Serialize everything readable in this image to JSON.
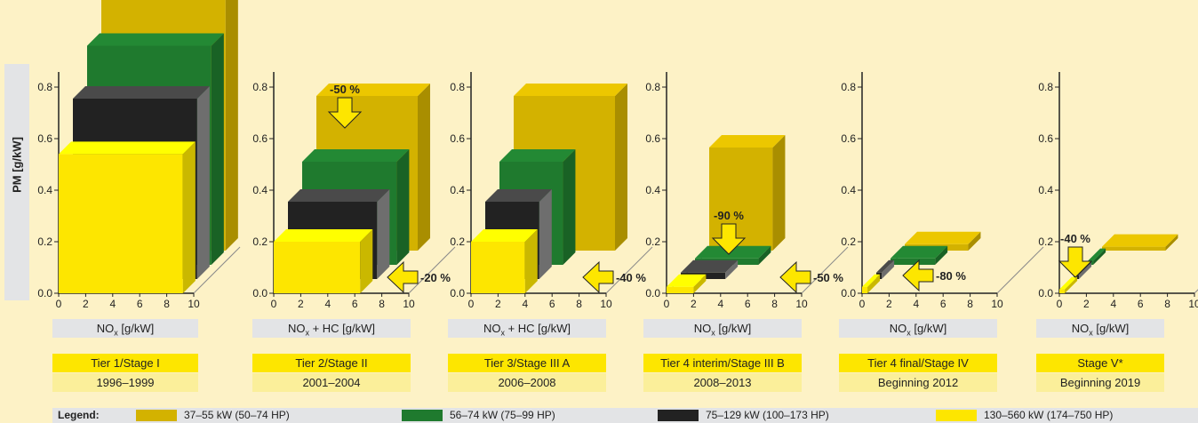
{
  "chart_data": {
    "type": "bar",
    "ylabel": "PM [g/kW]",
    "ylim": [
      0,
      0.9
    ],
    "yticks": [
      "0.0",
      "0.2",
      "0.4",
      "0.6",
      "0.8"
    ],
    "xticks": [
      "0",
      "2",
      "4",
      "6",
      "8",
      "10"
    ],
    "xlim": [
      0,
      10
    ],
    "series_names": [
      "37–55 kW (50–74 HP)",
      "56–74 kW (75–99 HP)",
      "75–129 kW (100–173 HP)",
      "130–560 kW (174–750 HP)"
    ],
    "colors": {
      "37-55": "#d3b200",
      "56-74": "#1f7a2e",
      "75-129": "#222222",
      "130-560": "#fde600",
      "gray_side": "#6e6e6e"
    },
    "panels": [
      {
        "xlabel_main": "NO",
        "xlabel_sub": "x",
        "xlabel_rest": " [g/kW]",
        "tier": "Tier 1/Stage I",
        "years": "1996–1999",
        "bars": [
          {
            "series": "37–55 kW (50–74 HP)",
            "nox": 9.2,
            "pm": 1.0
          },
          {
            "series": "56–74 kW (75–99 HP)",
            "nox": 9.2,
            "pm": 0.85
          },
          {
            "series": "75–129 kW (100–173 HP)",
            "nox": 9.2,
            "pm": 0.7
          },
          {
            "series": "130–560 kW (174–750 HP)",
            "nox": 9.2,
            "pm": 0.54
          }
        ],
        "annotations": []
      },
      {
        "xlabel_main": "NO",
        "xlabel_sub": "x",
        "xlabel_rest": " + HC [g/kW]",
        "tier": "Tier 2/Stage II",
        "years": "2001–2004",
        "bars": [
          {
            "series": "37–55 kW (50–74 HP)",
            "nox": 7.5,
            "pm": 0.6
          },
          {
            "series": "56–74 kW (75–99 HP)",
            "nox": 7.0,
            "pm": 0.4
          },
          {
            "series": "75–129 kW (100–173 HP)",
            "nox": 6.6,
            "pm": 0.3
          },
          {
            "series": "130–560 kW (174–750 HP)",
            "nox": 6.4,
            "pm": 0.2
          }
        ],
        "annotations": [
          "-50 %",
          "-20 %"
        ]
      },
      {
        "xlabel_main": "NO",
        "xlabel_sub": "x",
        "xlabel_rest": " + HC [g/kW]",
        "tier": "Tier 3/Stage III A",
        "years": "2006–2008",
        "bars": [
          {
            "series": "37–55 kW (50–74 HP)",
            "nox": 7.5,
            "pm": 0.6
          },
          {
            "series": "56–74 kW (75–99 HP)",
            "nox": 4.7,
            "pm": 0.4
          },
          {
            "series": "75–129 kW (100–173 HP)",
            "nox": 4.0,
            "pm": 0.3
          },
          {
            "series": "130–560 kW (174–750 HP)",
            "nox": 4.0,
            "pm": 0.2
          }
        ],
        "annotations": [
          "-40 %"
        ]
      },
      {
        "xlabel_main": "NO",
        "xlabel_sub": "x",
        "xlabel_rest": " [g/kW]",
        "tier": "Tier 4 interim/Stage III B",
        "years": "2008–2013",
        "bars": [
          {
            "series": "37–55 kW (50–74 HP)",
            "nox": 4.7,
            "pm": 0.4
          },
          {
            "series": "56–74 kW (75–99 HP)",
            "nox": 4.7,
            "pm": 0.025
          },
          {
            "series": "75–129 kW (100–173 HP)",
            "nox": 3.3,
            "pm": 0.025
          },
          {
            "series": "130–560 kW (174–750 HP)",
            "nox": 2.0,
            "pm": 0.025
          }
        ],
        "annotations": [
          "-90 %",
          "-50 %"
        ]
      },
      {
        "xlabel_main": "NO",
        "xlabel_sub": "x",
        "xlabel_rest": " [g/kW]",
        "tier": "Tier 4 final/Stage IV",
        "years": "Beginning 2012",
        "bars": [
          {
            "series": "37–55 kW (50–74 HP)",
            "nox": 4.7,
            "pm": 0.025
          },
          {
            "series": "56–74 kW (75–99 HP)",
            "nox": 3.3,
            "pm": 0.025
          },
          {
            "series": "75–129 kW (100–173 HP)",
            "nox": 0.4,
            "pm": 0.025
          },
          {
            "series": "130–560 kW (174–750 HP)",
            "nox": 0.4,
            "pm": 0.025
          }
        ],
        "annotations": [
          "-80 %"
        ]
      },
      {
        "xlabel_main": "NO",
        "xlabel_sub": "x",
        "xlabel_rest": " [g/kW]",
        "tier": "Stage V*",
        "years": "Beginning 2019",
        "bars": [
          {
            "series": "37–55 kW (50–74 HP)",
            "nox": 4.7,
            "pm": 0.015
          },
          {
            "series": "56–74 kW (75–99 HP)",
            "nox": 0.4,
            "pm": 0.015
          },
          {
            "series": "75–129 kW (100–173 HP)",
            "nox": 0.4,
            "pm": 0.015
          },
          {
            "series": "130–560 kW (174–750 HP)",
            "nox": 0.4,
            "pm": 0.015
          }
        ],
        "annotations": [
          "-40 %"
        ]
      }
    ]
  },
  "legend": {
    "title": "Legend:",
    "items": [
      {
        "label": "37–55 kW (50–74 HP)",
        "color": "#d3b200"
      },
      {
        "label": "56–74 kW (75–99 HP)",
        "color": "#1f7a2e"
      },
      {
        "label": "75–129 kW (100–173 HP)",
        "color": "#222222"
      },
      {
        "label": "130–560 kW (174–750 HP)",
        "color": "#fde600"
      }
    ]
  }
}
